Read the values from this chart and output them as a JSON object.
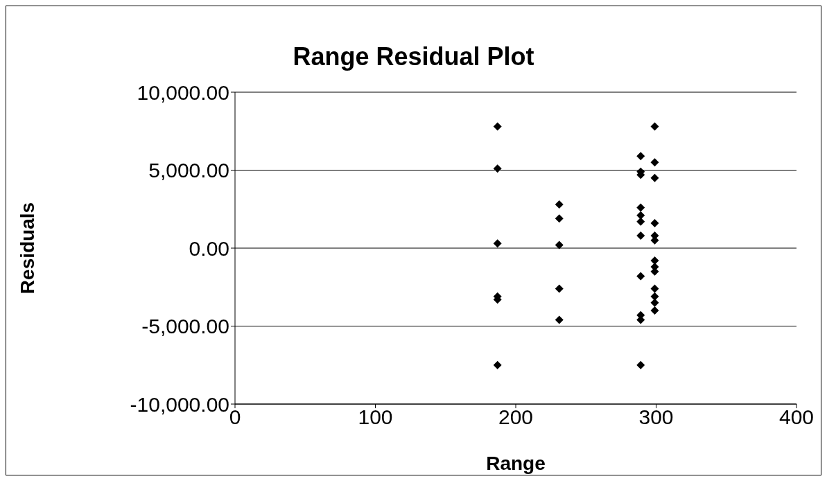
{
  "chart_data": {
    "type": "scatter",
    "title": "Range Residual Plot",
    "xlabel": "Range",
    "ylabel": "Residuals",
    "series": [
      {
        "color": "#000000",
        "x": [
          187,
          187,
          187,
          187,
          187,
          187,
          231,
          231,
          231,
          231,
          231,
          289,
          289,
          289,
          289,
          289,
          289,
          289,
          289,
          289,
          289,
          289,
          299,
          299,
          299,
          299,
          299,
          299,
          299,
          299,
          299,
          299,
          299,
          299,
          299
        ],
        "values": [
          7800,
          5100,
          300,
          -3100,
          -3300,
          -7500,
          2800,
          1900,
          200,
          -2600,
          -4600,
          5900,
          4900,
          4700,
          2600,
          2100,
          1700,
          800,
          -1800,
          -4300,
          -4600,
          -7500,
          7800,
          5500,
          4500,
          1600,
          800,
          500,
          -800,
          -1200,
          -1500,
          -2600,
          -3100,
          -3500,
          -4000
        ]
      }
    ],
    "xlim": [
      0,
      400
    ],
    "xticks": [
      0,
      100,
      200,
      300,
      400
    ],
    "ylim": [
      -10000,
      10000
    ],
    "yticks": [
      {
        "value": -10000,
        "label": "-10,000.00"
      },
      {
        "value": -5000,
        "label": "-5,000.00"
      },
      {
        "value": 0,
        "label": "0.00"
      },
      {
        "value": 5000,
        "label": "5,000.00"
      },
      {
        "value": 10000,
        "label": "10,000.00"
      }
    ],
    "grid": "y",
    "marker": "diamond",
    "legend": false
  }
}
